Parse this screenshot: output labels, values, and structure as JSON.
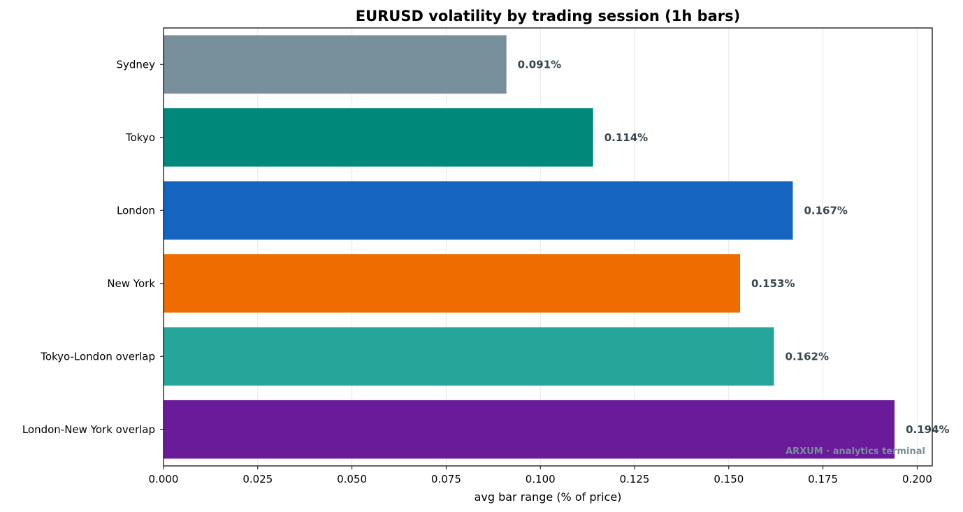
{
  "chart_data": {
    "type": "bar",
    "orientation": "horizontal",
    "title": "EURUSD volatility by trading session (1h bars)",
    "xlabel": "avg bar range (% of price)",
    "ylabel": "",
    "xlim": [
      0,
      0.204
    ],
    "x_ticks": [
      "0.000",
      "0.025",
      "0.050",
      "0.075",
      "0.100",
      "0.125",
      "0.150",
      "0.175",
      "0.200"
    ],
    "categories": [
      "Sydney",
      "Tokyo",
      "London",
      "New York",
      "Tokyo-London overlap",
      "London-New York overlap"
    ],
    "values": [
      0.091,
      0.114,
      0.167,
      0.153,
      0.162,
      0.194
    ],
    "value_labels": [
      "0.091%",
      "0.114%",
      "0.167%",
      "0.153%",
      "0.162%",
      "0.194%"
    ],
    "colors": [
      "#78909c",
      "#00897b",
      "#1565c0",
      "#ef6c00",
      "#26a69a",
      "#6a1b9a"
    ],
    "grid": "vertical",
    "watermark": "ARXUM · analytics terminal"
  }
}
